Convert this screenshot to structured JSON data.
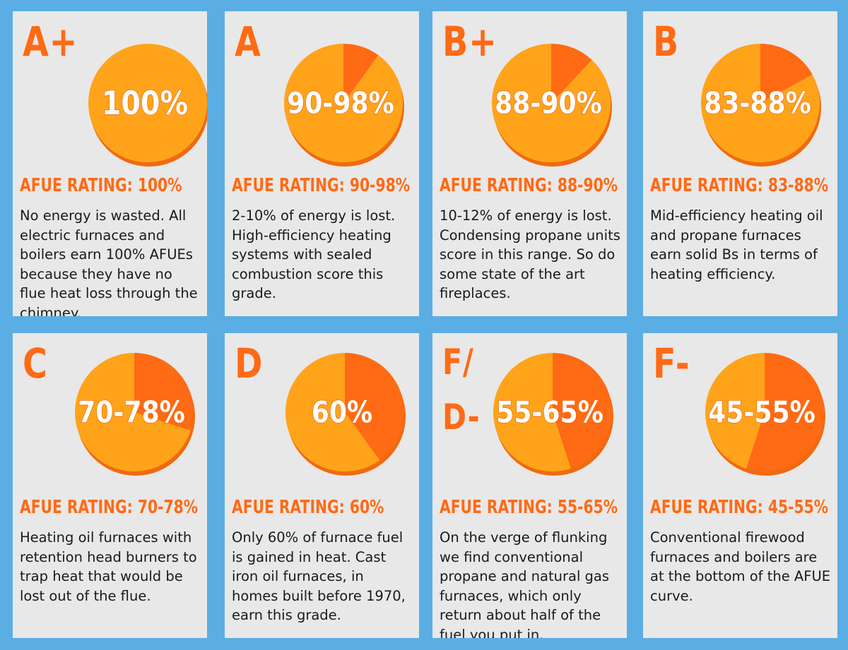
{
  "colors": {
    "background": "#5aaee3",
    "card": "#e8e8e8",
    "accent": "#ff6a14",
    "pie_light": "#ffa31a",
    "pie_dark": "#ff6a14",
    "pie_shadow": "#f06a10"
  },
  "cards": [
    {
      "grade": "A+",
      "percent_label": "100%",
      "efficiency_fraction": 1.0,
      "rating": "AFUE RATING: 100%",
      "description": "No energy is wasted. All electric furnaces and boilers earn 100% AFUEs because they have no flue heat loss through the chimney."
    },
    {
      "grade": "A",
      "percent_label": "90-98%",
      "efficiency_fraction": 0.9,
      "rating": "AFUE RATING: 90-98%",
      "description": "2-10% of energy is lost. High-efficiency heating systems with sealed combustion score this grade."
    },
    {
      "grade": "B+",
      "percent_label": "88-90%",
      "efficiency_fraction": 0.88,
      "rating": "AFUE RATING: 88-90%",
      "description": "10-12% of energy is lost. Condensing propane units score in this range. So do some state of the art fireplaces."
    },
    {
      "grade": "B",
      "percent_label": "83-88%",
      "efficiency_fraction": 0.83,
      "rating": "AFUE RATING: 83-88%",
      "description": "Mid-efficiency heating oil and propane furnaces earn solid Bs in terms of heating efficiency."
    },
    {
      "grade": "C",
      "percent_label": "70-78%",
      "efficiency_fraction": 0.7,
      "rating": "AFUE RATING: 70-78%",
      "description": "Heating oil furnaces with retention head burners to trap heat that would be lost out of the flue."
    },
    {
      "grade": "D",
      "percent_label": "60%",
      "efficiency_fraction": 0.6,
      "rating": "AFUE RATING: 60%",
      "description": "Only 60% of furnace fuel is gained in heat. Cast iron oil furnaces, in homes built before 1970, earn this grade."
    },
    {
      "grade": "F/\nD-",
      "percent_label": "55-65%",
      "efficiency_fraction": 0.55,
      "rating": "AFUE RATING: 55-65%",
      "description": "On the verge of flunking we find conventional propane and natural gas furnaces, which only return about half of the fuel you put in."
    },
    {
      "grade": "F-",
      "percent_label": "45-55%",
      "efficiency_fraction": 0.45,
      "rating": "AFUE RATING: 45-55%",
      "description": "Conventional firewood furnaces and boilers are at the bottom of the AFUE curve."
    }
  ]
}
